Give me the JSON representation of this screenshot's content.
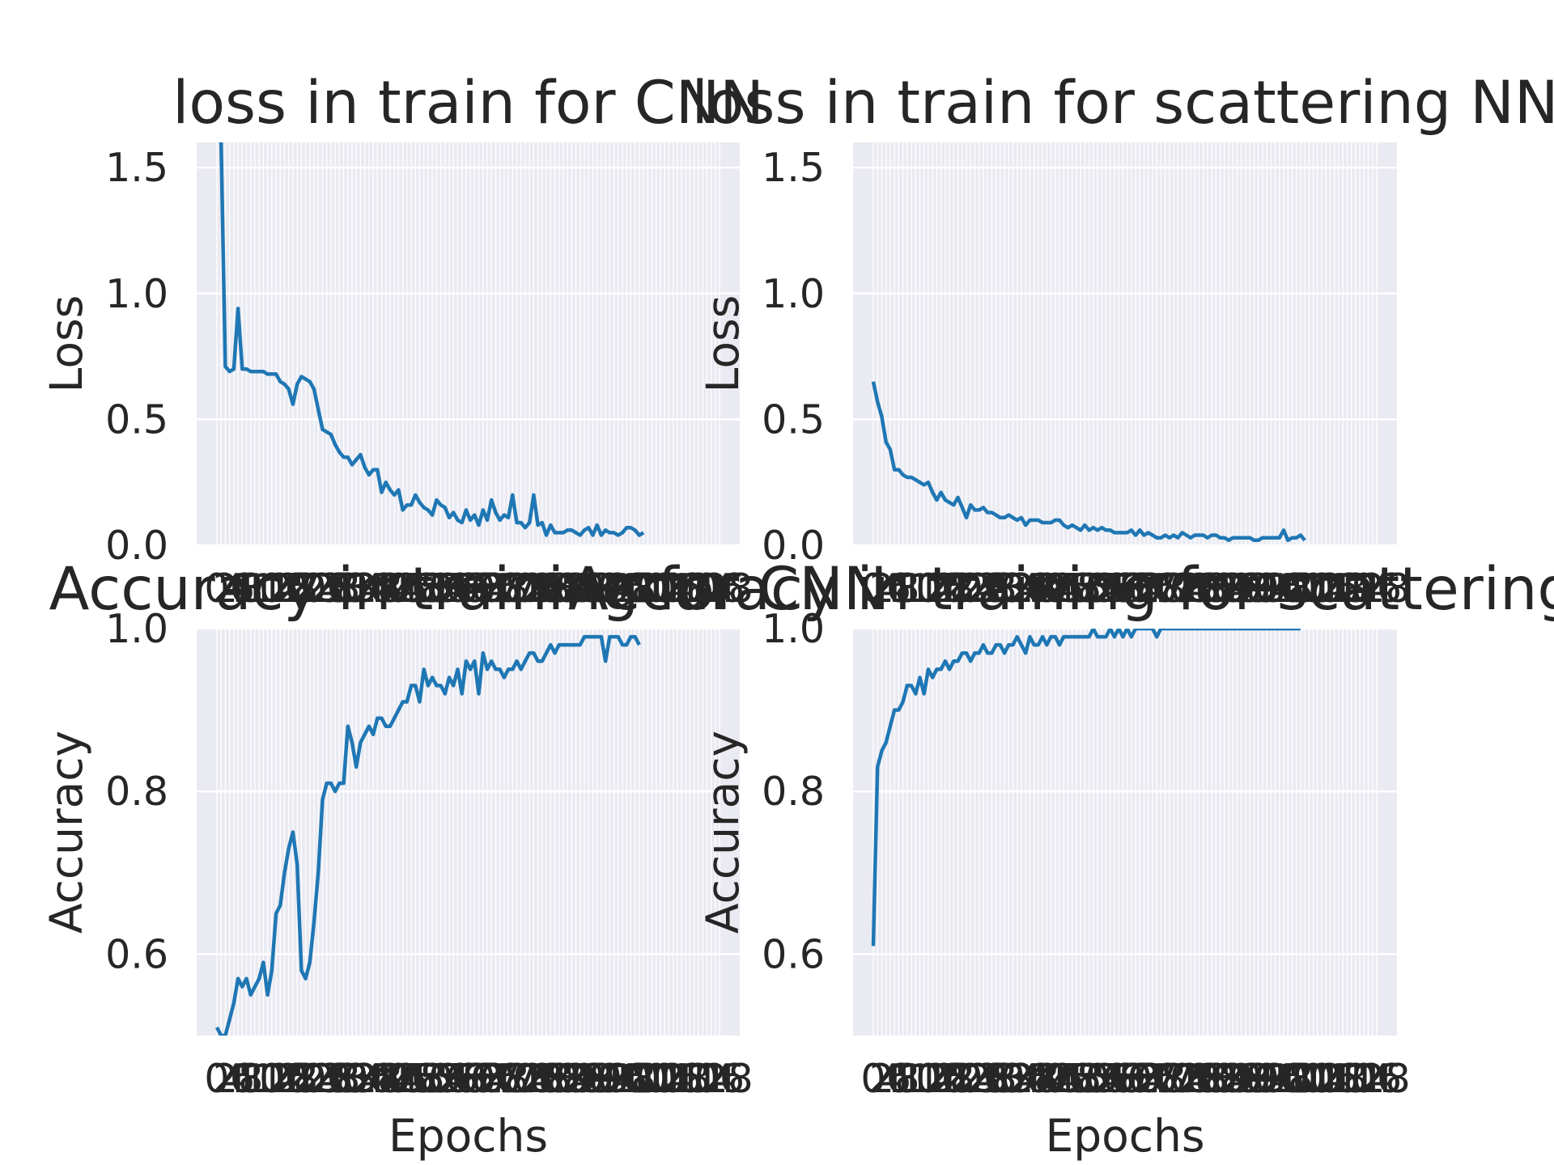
{
  "chart_data": [
    {
      "type": "line",
      "title": "loss in train for CNN",
      "xlabel": "",
      "ylabel": "Loss",
      "ylim": [
        0,
        1.6
      ],
      "yticks": [
        "0.0",
        "0.5",
        "1.0",
        "1.5"
      ],
      "x_range": [
        0,
        119
      ],
      "grid": true,
      "series": [
        {
          "color": "#1f77b4",
          "values": [
            2.0,
            1.6,
            0.71,
            0.69,
            0.7,
            0.94,
            0.7,
            0.7,
            0.69,
            0.69,
            0.69,
            0.69,
            0.68,
            0.68,
            0.68,
            0.65,
            0.64,
            0.62,
            0.56,
            0.64,
            0.67,
            0.66,
            0.65,
            0.62,
            0.54,
            0.46,
            0.45,
            0.44,
            0.4,
            0.37,
            0.35,
            0.35,
            0.32,
            0.34,
            0.36,
            0.31,
            0.28,
            0.3,
            0.3,
            0.21,
            0.25,
            0.22,
            0.2,
            0.22,
            0.14,
            0.16,
            0.16,
            0.2,
            0.17,
            0.15,
            0.14,
            0.12,
            0.18,
            0.16,
            0.15,
            0.11,
            0.13,
            0.1,
            0.09,
            0.14,
            0.1,
            0.12,
            0.08,
            0.14,
            0.1,
            0.18,
            0.13,
            0.1,
            0.12,
            0.11,
            0.2,
            0.09,
            0.09,
            0.07,
            0.09,
            0.2,
            0.08,
            0.09,
            0.04,
            0.08,
            0.05,
            0.05,
            0.05,
            0.06,
            0.06,
            0.05,
            0.04,
            0.06,
            0.07,
            0.04,
            0.08,
            0.04,
            0.06,
            0.05,
            0.05,
            0.04,
            0.05,
            0.07,
            0.07,
            0.06,
            0.04,
            0.05
          ]
        }
      ]
    },
    {
      "type": "line",
      "title": "loss in train for scattering NN",
      "xlabel": "",
      "ylabel": "Loss",
      "ylim": [
        0,
        1.6
      ],
      "yticks": [
        "0.0",
        "0.5",
        "1.0",
        "1.5"
      ],
      "x_range": [
        0,
        119
      ],
      "grid": true,
      "series": [
        {
          "color": "#1f77b4",
          "values": [
            0.65,
            0.57,
            0.51,
            0.41,
            0.38,
            0.3,
            0.3,
            0.28,
            0.27,
            0.27,
            0.26,
            0.25,
            0.24,
            0.25,
            0.21,
            0.18,
            0.21,
            0.18,
            0.17,
            0.16,
            0.19,
            0.15,
            0.11,
            0.16,
            0.14,
            0.14,
            0.15,
            0.13,
            0.13,
            0.12,
            0.11,
            0.11,
            0.12,
            0.11,
            0.1,
            0.11,
            0.08,
            0.1,
            0.1,
            0.1,
            0.09,
            0.09,
            0.09,
            0.1,
            0.1,
            0.08,
            0.07,
            0.08,
            0.07,
            0.06,
            0.08,
            0.06,
            0.07,
            0.06,
            0.07,
            0.06,
            0.06,
            0.05,
            0.05,
            0.05,
            0.05,
            0.06,
            0.04,
            0.06,
            0.04,
            0.05,
            0.04,
            0.03,
            0.03,
            0.04,
            0.03,
            0.04,
            0.03,
            0.05,
            0.04,
            0.03,
            0.04,
            0.04,
            0.04,
            0.03,
            0.04,
            0.04,
            0.03,
            0.03,
            0.02,
            0.03,
            0.03,
            0.03,
            0.03,
            0.03,
            0.02,
            0.02,
            0.03,
            0.03,
            0.03,
            0.03,
            0.03,
            0.06,
            0.02,
            0.03,
            0.03,
            0.04,
            0.02
          ]
        }
      ]
    },
    {
      "type": "line",
      "title": "Accuracy in training for CNN",
      "xlabel": "Epochs",
      "ylabel": "Accuracy",
      "ylim": [
        0.5,
        1.0
      ],
      "yticks": [
        "0.6",
        "0.8",
        "1.0"
      ],
      "x_range": [
        0,
        119
      ],
      "grid": true,
      "series": [
        {
          "color": "#1f77b4",
          "values": [
            0.51,
            0.5,
            0.5,
            0.52,
            0.54,
            0.57,
            0.56,
            0.57,
            0.55,
            0.56,
            0.57,
            0.59,
            0.55,
            0.58,
            0.65,
            0.66,
            0.7,
            0.73,
            0.75,
            0.71,
            0.58,
            0.57,
            0.59,
            0.64,
            0.7,
            0.79,
            0.81,
            0.81,
            0.8,
            0.81,
            0.81,
            0.88,
            0.86,
            0.83,
            0.86,
            0.87,
            0.88,
            0.87,
            0.89,
            0.89,
            0.88,
            0.88,
            0.89,
            0.9,
            0.91,
            0.91,
            0.93,
            0.93,
            0.91,
            0.95,
            0.93,
            0.94,
            0.93,
            0.93,
            0.92,
            0.94,
            0.93,
            0.95,
            0.92,
            0.96,
            0.95,
            0.96,
            0.92,
            0.97,
            0.95,
            0.96,
            0.95,
            0.95,
            0.94,
            0.95,
            0.95,
            0.96,
            0.95,
            0.96,
            0.97,
            0.97,
            0.96,
            0.96,
            0.97,
            0.98,
            0.97,
            0.98,
            0.98,
            0.98,
            0.98,
            0.98,
            0.98,
            0.99,
            0.99,
            0.99,
            0.99,
            0.99,
            0.96,
            0.99,
            0.99,
            0.99,
            0.98,
            0.98,
            0.99,
            0.99,
            0.98
          ]
        }
      ]
    },
    {
      "type": "line",
      "title": "Accuracy in training for scattering NN",
      "xlabel": "Epochs",
      "ylabel": "Accuracy",
      "ylim": [
        0.5,
        1.0
      ],
      "yticks": [
        "0.6",
        "0.8",
        "1.0"
      ],
      "x_range": [
        0,
        119
      ],
      "grid": true,
      "series": [
        {
          "color": "#1f77b4",
          "values": [
            0.61,
            0.83,
            0.85,
            0.86,
            0.88,
            0.9,
            0.9,
            0.91,
            0.93,
            0.93,
            0.92,
            0.94,
            0.92,
            0.95,
            0.94,
            0.95,
            0.95,
            0.96,
            0.95,
            0.96,
            0.96,
            0.97,
            0.97,
            0.96,
            0.97,
            0.97,
            0.98,
            0.97,
            0.97,
            0.98,
            0.98,
            0.97,
            0.98,
            0.98,
            0.99,
            0.98,
            0.97,
            0.99,
            0.98,
            0.98,
            0.99,
            0.98,
            0.99,
            0.99,
            0.98,
            0.99,
            0.99,
            0.99,
            0.99,
            0.99,
            0.99,
            0.99,
            1.0,
            0.99,
            0.99,
            0.99,
            1.0,
            0.99,
            1.0,
            0.99,
            1.0,
            0.99,
            1.0,
            1.0,
            1.0,
            1.0,
            1.0,
            0.99,
            1.0,
            1.0,
            1.0,
            1.0,
            1.0,
            1.0,
            1.0,
            1.0,
            1.0,
            1.0,
            1.0,
            1.0,
            1.0,
            1.0,
            1.0,
            1.0,
            1.0,
            1.0,
            1.0,
            1.0,
            1.0,
            1.0,
            1.0,
            1.0,
            1.0,
            1.0,
            1.0,
            1.0,
            1.0,
            1.0,
            1.0,
            1.0,
            1.0,
            1.0
          ]
        }
      ]
    }
  ]
}
